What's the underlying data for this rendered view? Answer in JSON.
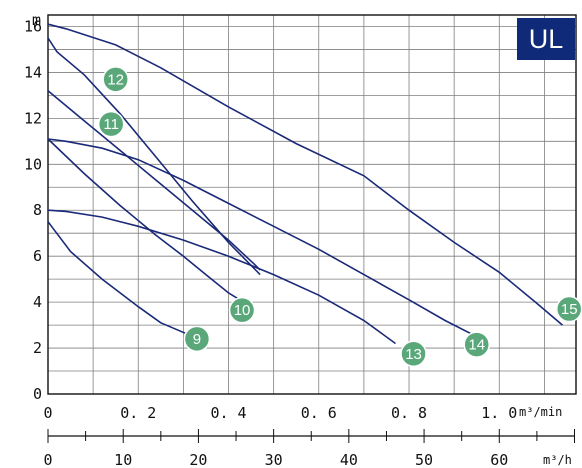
{
  "brand_label": "UL",
  "colors": {
    "curve": "#1a2a78",
    "badge": "#5aa87a",
    "brand_box": "#0f2a78",
    "grid": "#7f7f7f"
  },
  "chart_data": {
    "type": "line",
    "title": "",
    "ylabel": "m",
    "xlabel": "m³/min",
    "x2label": "m³/h",
    "ylim": [
      0,
      16.5
    ],
    "y_ticks": [
      0,
      2,
      4,
      6,
      8,
      10,
      12,
      14,
      16
    ],
    "xlim": [
      0,
      1.17
    ],
    "x_ticks": [
      0,
      0.2,
      0.4,
      0.6,
      0.8,
      1.0
    ],
    "x_tick_labels": [
      "0",
      "0. 2",
      "0. 4",
      "0. 6",
      "0. 8",
      "1. 0"
    ],
    "x2_ticks": [
      0,
      10,
      20,
      30,
      40,
      50,
      60
    ],
    "x2_tick_labels": [
      "0",
      "10",
      "20",
      "30",
      "40",
      "50",
      "60"
    ],
    "grid": true,
    "series": [
      {
        "name": "9",
        "x": [
          0,
          0.05,
          0.12,
          0.2,
          0.25,
          0.31
        ],
        "y": [
          7.5,
          6.2,
          5.0,
          3.8,
          3.1,
          2.6
        ]
      },
      {
        "name": "10",
        "x": [
          0,
          0.08,
          0.16,
          0.24,
          0.3,
          0.35,
          0.4,
          0.425
        ],
        "y": [
          11.1,
          9.6,
          8.2,
          6.9,
          6.0,
          5.2,
          4.4,
          4.1
        ]
      },
      {
        "name": "11",
        "x": [
          0,
          0.08,
          0.16,
          0.24,
          0.32,
          0.4,
          0.46,
          0.47
        ],
        "y": [
          13.2,
          11.9,
          10.6,
          9.3,
          8.0,
          6.7,
          5.6,
          5.4
        ]
      },
      {
        "name": "12",
        "x": [
          0,
          0.02,
          0.08,
          0.16,
          0.24,
          0.32,
          0.4,
          0.46,
          0.47
        ],
        "y": [
          15.5,
          14.9,
          13.9,
          12.2,
          10.3,
          8.4,
          6.6,
          5.4,
          5.2
        ]
      },
      {
        "name": "13",
        "x": [
          0,
          0.04,
          0.12,
          0.2,
          0.3,
          0.4,
          0.5,
          0.6,
          0.7,
          0.77
        ],
        "y": [
          8.0,
          7.95,
          7.7,
          7.3,
          6.7,
          6.0,
          5.2,
          4.3,
          3.2,
          2.2
        ]
      },
      {
        "name": "14",
        "x": [
          0,
          0.04,
          0.12,
          0.2,
          0.3,
          0.4,
          0.5,
          0.6,
          0.7,
          0.8,
          0.88,
          0.94
        ],
        "y": [
          11.1,
          11.0,
          10.7,
          10.2,
          9.3,
          8.3,
          7.3,
          6.3,
          5.2,
          4.1,
          3.2,
          2.6
        ]
      },
      {
        "name": "15",
        "x": [
          0,
          0.04,
          0.15,
          0.25,
          0.4,
          0.55,
          0.7,
          0.8,
          0.9,
          1.0,
          1.08,
          1.14
        ],
        "y": [
          16.1,
          15.9,
          15.2,
          14.2,
          12.5,
          10.9,
          9.5,
          8.0,
          6.6,
          5.3,
          4.0,
          3.0
        ]
      }
    ],
    "badges": [
      {
        "label": "9",
        "x": 0.33,
        "y": 2.4
      },
      {
        "label": "10",
        "x": 0.43,
        "y": 3.65
      },
      {
        "label": "11",
        "x": 0.14,
        "y": 11.75
      },
      {
        "label": "12",
        "x": 0.15,
        "y": 13.7
      },
      {
        "label": "13",
        "x": 0.81,
        "y": 1.75
      },
      {
        "label": "14",
        "x": 0.95,
        "y": 2.15
      },
      {
        "label": "15",
        "x": 1.155,
        "y": 3.7
      }
    ]
  }
}
